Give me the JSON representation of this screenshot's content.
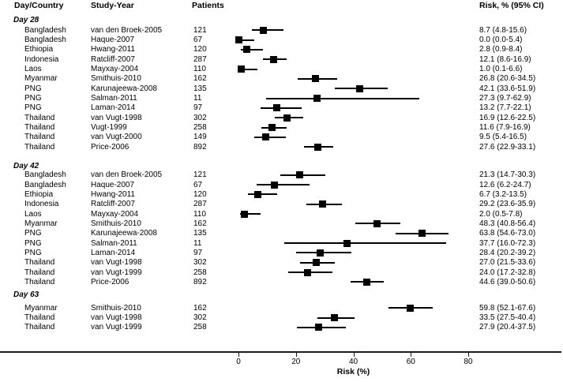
{
  "header": {
    "col_day_country": "Day/Country",
    "col_study_year": "Study-Year",
    "col_patients": "Patients",
    "col_risk": "Risk, % (95% CI)"
  },
  "axis": {
    "label": "Risk (%)",
    "ticks": [
      0,
      20,
      40,
      60,
      80
    ],
    "min": 0,
    "max": 80
  },
  "chart_data": {
    "type": "forest",
    "title": "",
    "xlabel": "Risk (%)",
    "x_ticks": [
      0,
      20,
      40,
      60,
      80
    ],
    "marker": "black-square",
    "groups": [
      {
        "label": "Day 28",
        "rows": [
          {
            "country": "Bangladesh",
            "study": "van den Broek-2005",
            "patients": "121",
            "risk": 8.7,
            "ci_low": 4.8,
            "ci_high": 15.6,
            "risk_label": "8.7 (4.8-15.6)"
          },
          {
            "country": "Bangladesh",
            "study": "Haque-2007",
            "patients": "67",
            "risk": 0.0,
            "ci_low": 0.0,
            "ci_high": 5.4,
            "risk_label": "0.0 (0.0-5.4)"
          },
          {
            "country": "Ethiopia",
            "study": "Hwang-2011",
            "patients": "120",
            "risk": 2.8,
            "ci_low": 0.9,
            "ci_high": 8.4,
            "risk_label": "2.8 (0.9-8.4)"
          },
          {
            "country": "Indonesia",
            "study": "Ratcliff-2007",
            "patients": "287",
            "risk": 12.1,
            "ci_low": 8.6,
            "ci_high": 16.9,
            "risk_label": "12.1 (8.6-16.9)"
          },
          {
            "country": "Laos",
            "study": "Mayxay-2004",
            "patients": "110",
            "risk": 1.0,
            "ci_low": 0.1,
            "ci_high": 6.6,
            "risk_label": "1.0 (0.1-6.6)"
          },
          {
            "country": "Myanmar",
            "study": "Smithuis-2010",
            "patients": "162",
            "risk": 26.8,
            "ci_low": 20.6,
            "ci_high": 34.5,
            "risk_label": "26.8 (20.6-34.5)"
          },
          {
            "country": "PNG",
            "study": "Karunajeewa-2008",
            "patients": "135",
            "risk": 42.1,
            "ci_low": 33.6,
            "ci_high": 51.9,
            "risk_label": "42.1 (33.6-51.9)"
          },
          {
            "country": "PNG",
            "study": "Salman-2011",
            "patients": "11",
            "risk": 27.3,
            "ci_low": 9.7,
            "ci_high": 62.9,
            "risk_label": "27.3 (9.7-62.9)"
          },
          {
            "country": "PNG",
            "study": "Laman-2014",
            "patients": "97",
            "risk": 13.2,
            "ci_low": 7.7,
            "ci_high": 22.1,
            "risk_label": "13.2 (7.7-22.1)"
          },
          {
            "country": "Thailand",
            "study": "van Vugt-1998",
            "patients": "302",
            "risk": 16.9,
            "ci_low": 12.6,
            "ci_high": 22.5,
            "risk_label": "16.9 (12.6-22.5)"
          },
          {
            "country": "Thailand",
            "study": "Vugt-1999",
            "patients": "258",
            "risk": 11.6,
            "ci_low": 7.9,
            "ci_high": 16.9,
            "risk_label": "11.6 (7.9-16.9)"
          },
          {
            "country": "Thailand",
            "study": "van Vugt-2000",
            "patients": "149",
            "risk": 9.5,
            "ci_low": 5.4,
            "ci_high": 16.5,
            "risk_label": "9.5 (5.4-16.5)"
          },
          {
            "country": "Thailand",
            "study": "Price-2006",
            "patients": "892",
            "risk": 27.6,
            "ci_low": 22.9,
            "ci_high": 33.1,
            "risk_label": "27.6 (22.9-33.1)"
          }
        ]
      },
      {
        "label": "Day 42",
        "rows": [
          {
            "country": "Bangladesh",
            "study": "van den Broek-2005",
            "patients": "121",
            "risk": 21.3,
            "ci_low": 14.7,
            "ci_high": 30.3,
            "risk_label": "21.3 (14.7-30.3)"
          },
          {
            "country": "Bangladesh",
            "study": "Haque-2007",
            "patients": "67",
            "risk": 12.6,
            "ci_low": 6.2,
            "ci_high": 24.7,
            "risk_label": "12.6 (6.2-24.7)"
          },
          {
            "country": "Ethiopia",
            "study": "Hwang-2011",
            "patients": "120",
            "risk": 6.7,
            "ci_low": 3.2,
            "ci_high": 13.5,
            "risk_label": "6.7 (3.2-13.5)"
          },
          {
            "country": "Indonesia",
            "study": "Ratcliff-2007",
            "patients": "287",
            "risk": 29.2,
            "ci_low": 23.6,
            "ci_high": 35.9,
            "risk_label": "29.2 (23.6-35.9)"
          },
          {
            "country": "Laos",
            "study": "Mayxay-2004",
            "patients": "110",
            "risk": 2.0,
            "ci_low": 0.5,
            "ci_high": 7.8,
            "risk_label": "2.0 (0.5-7.8)"
          },
          {
            "country": "Myanmar",
            "study": "Smithuis-2010",
            "patients": "162",
            "risk": 48.3,
            "ci_low": 40.8,
            "ci_high": 56.4,
            "risk_label": "48.3 (40.8-56.4)"
          },
          {
            "country": "PNG",
            "study": "Karunajeewa-2008",
            "patients": "135",
            "risk": 63.8,
            "ci_low": 54.6,
            "ci_high": 73.0,
            "risk_label": "63.8 (54.6-73.0)"
          },
          {
            "country": "PNG",
            "study": "Salman-2011",
            "patients": "11",
            "risk": 37.7,
            "ci_low": 16.0,
            "ci_high": 72.3,
            "risk_label": "37.7 (16.0-72.3)"
          },
          {
            "country": "PNG",
            "study": "Laman-2014",
            "patients": "97",
            "risk": 28.4,
            "ci_low": 20.2,
            "ci_high": 39.2,
            "risk_label": "28.4 (20.2-39.2)"
          },
          {
            "country": "Thailand",
            "study": "van Vugt-1998",
            "patients": "302",
            "risk": 27.0,
            "ci_low": 21.5,
            "ci_high": 33.6,
            "risk_label": "27.0 (21.5-33.6)"
          },
          {
            "country": "Thailand",
            "study": "van Vugt-1999",
            "patients": "258",
            "risk": 24.0,
            "ci_low": 17.2,
            "ci_high": 32.8,
            "risk_label": "24.0 (17.2-32.8)"
          },
          {
            "country": "Thailand",
            "study": "Price-2006",
            "patients": "892",
            "risk": 44.6,
            "ci_low": 39.0,
            "ci_high": 50.6,
            "risk_label": "44.6 (39.0-50.6)"
          }
        ]
      },
      {
        "label": "Day 63",
        "rows": [
          {
            "country": "Myanmar",
            "study": "Smithuis-2010",
            "patients": "162",
            "risk": 59.8,
            "ci_low": 52.1,
            "ci_high": 67.6,
            "risk_label": "59.8 (52.1-67.6)"
          },
          {
            "country": "Thailand",
            "study": "van Vugt-1998",
            "patients": "302",
            "risk": 33.5,
            "ci_low": 27.5,
            "ci_high": 40.4,
            "risk_label": "33.5 (27.5-40.4)"
          },
          {
            "country": "Thailand",
            "study": "van Vugt-1999",
            "patients": "258",
            "risk": 27.9,
            "ci_low": 20.4,
            "ci_high": 37.5,
            "risk_label": "27.9 (20.4-37.5)"
          }
        ]
      }
    ],
    "colors": {
      "marker": "#000000",
      "ci_line": "#000000",
      "text": "#000000",
      "background": "#ffffff"
    }
  }
}
